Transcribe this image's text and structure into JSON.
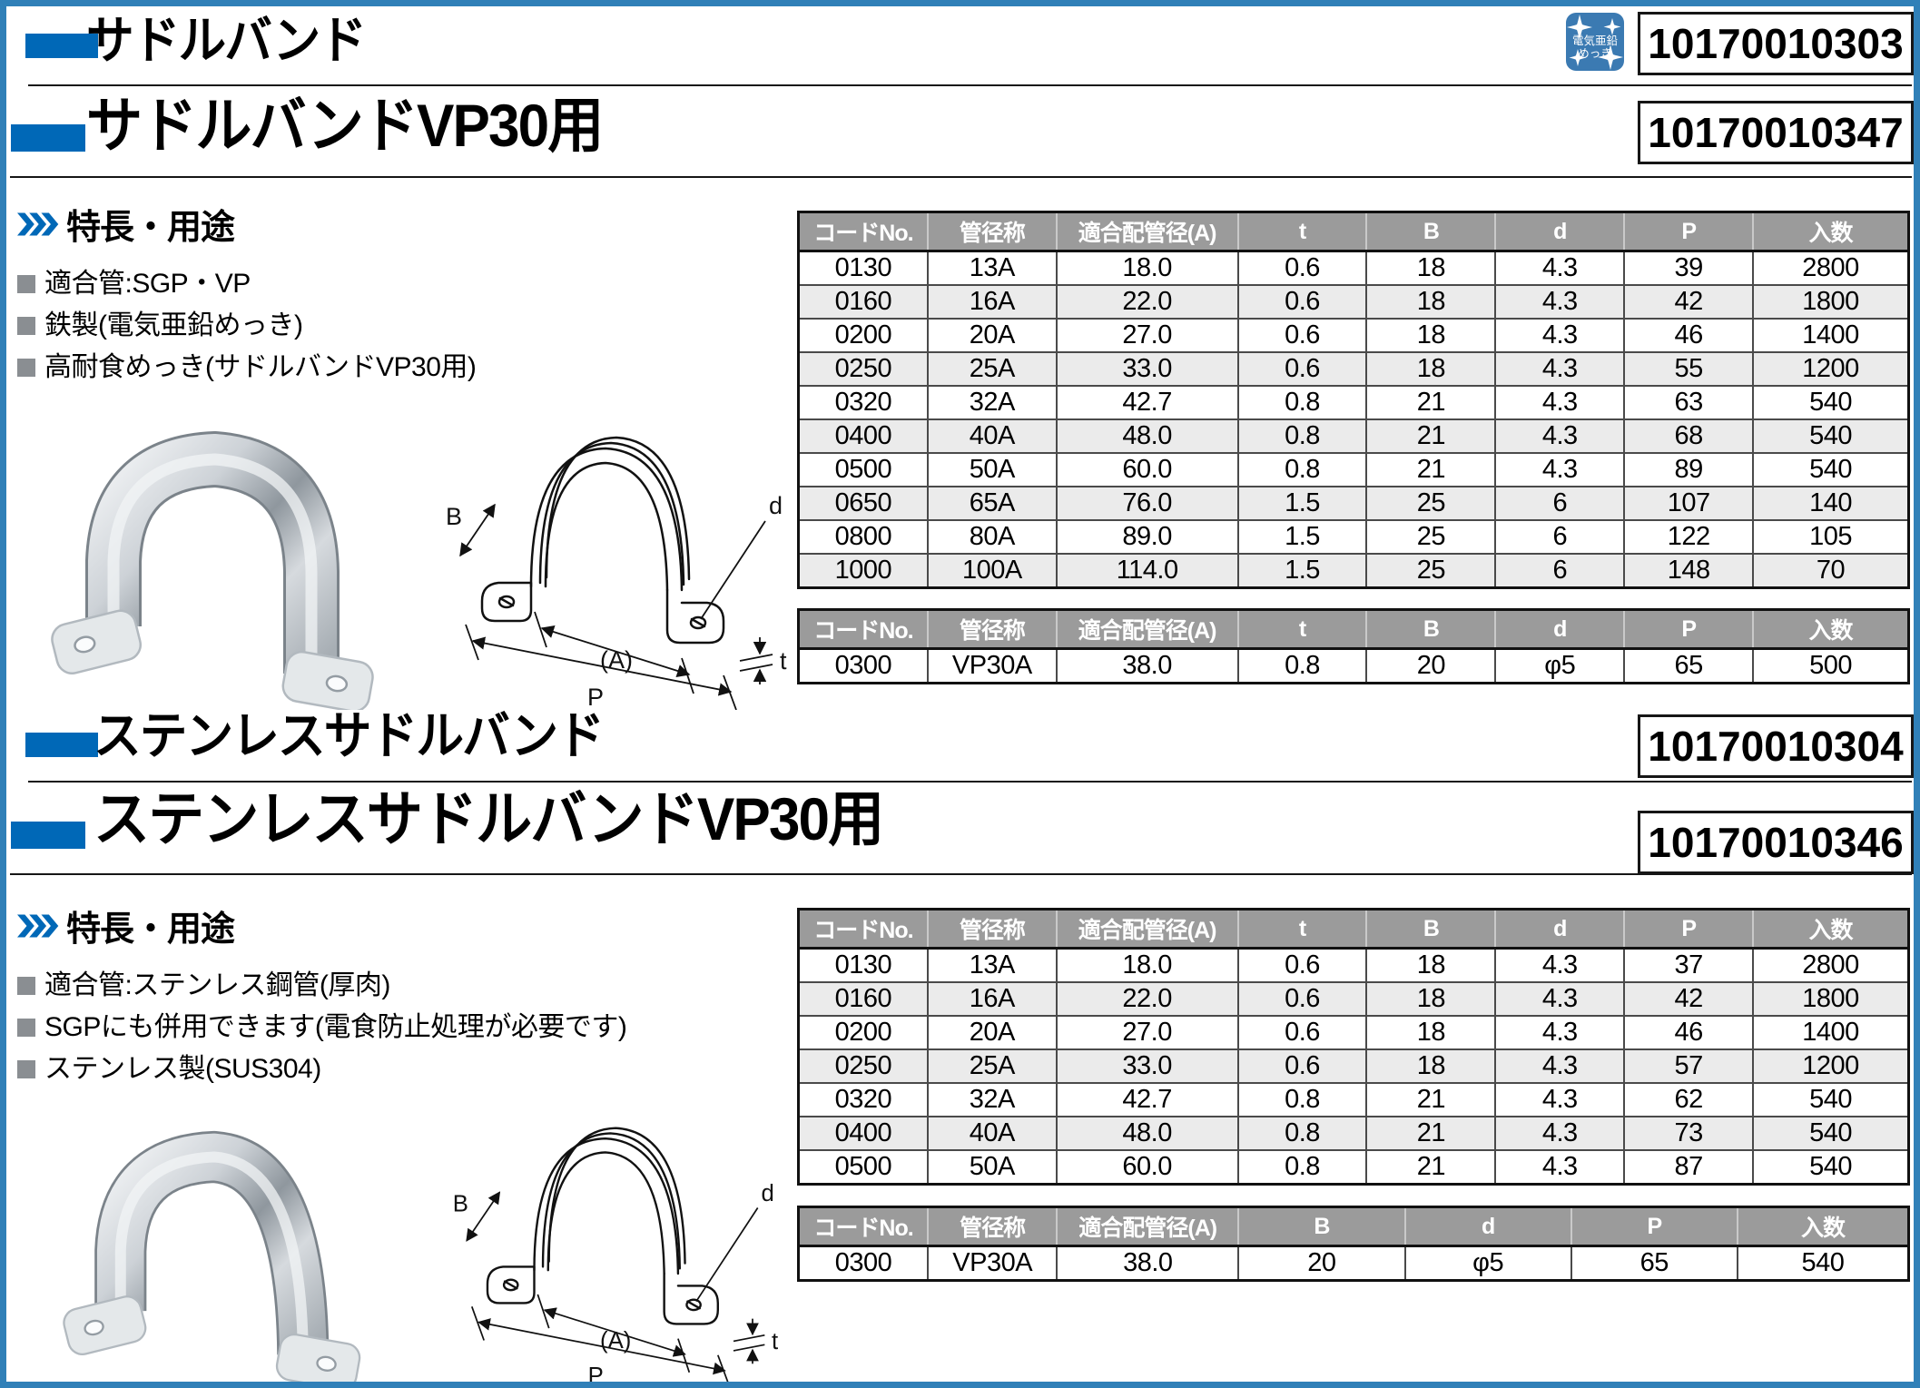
{
  "page": {
    "frame_color": "#3080b8",
    "accent_color": "#0068b7",
    "table_header_bg": "#9b9b9b",
    "alt_row_bg": "#ebebeb",
    "badge_bg": "#3b7ab2"
  },
  "badge": {
    "name": "electro-galvanized-plating",
    "line1": "電気亜鉛",
    "line2": "めっき"
  },
  "features_heading": "特長・用途",
  "diagram": {
    "b": "B",
    "d": "d",
    "a": "(A)",
    "p": "P",
    "t": "t"
  },
  "sections": [
    {
      "title_main": "サドルバンド",
      "code_main": "10170010303",
      "title_vp30": "サドルバンドVP30用",
      "code_vp30": "10170010347",
      "features": [
        "適合管:SGP・VP",
        "鉄製(電気亜鉛めっき)",
        "高耐食めっき(サドルバンドVP30用)"
      ],
      "table_main": {
        "headers": [
          "コードNo.",
          "管径称",
          "適合配管径(A)",
          "t",
          "B",
          "d",
          "P",
          "入数"
        ],
        "rows": [
          [
            "0130",
            "13A",
            "18.0",
            "0.6",
            "18",
            "4.3",
            "39",
            "2800"
          ],
          [
            "0160",
            "16A",
            "22.0",
            "0.6",
            "18",
            "4.3",
            "42",
            "1800"
          ],
          [
            "0200",
            "20A",
            "27.0",
            "0.6",
            "18",
            "4.3",
            "46",
            "1400"
          ],
          [
            "0250",
            "25A",
            "33.0",
            "0.6",
            "18",
            "4.3",
            "55",
            "1200"
          ],
          [
            "0320",
            "32A",
            "42.7",
            "0.8",
            "21",
            "4.3",
            "63",
            "540"
          ],
          [
            "0400",
            "40A",
            "48.0",
            "0.8",
            "21",
            "4.3",
            "68",
            "540"
          ],
          [
            "0500",
            "50A",
            "60.0",
            "0.8",
            "21",
            "4.3",
            "89",
            "540"
          ],
          [
            "0650",
            "65A",
            "76.0",
            "1.5",
            "25",
            "6",
            "107",
            "140"
          ],
          [
            "0800",
            "80A",
            "89.0",
            "1.5",
            "25",
            "6",
            "122",
            "105"
          ],
          [
            "1000",
            "100A",
            "114.0",
            "1.5",
            "25",
            "6",
            "148",
            "70"
          ]
        ]
      },
      "table_vp30": {
        "headers": [
          "コードNo.",
          "管径称",
          "適合配管径(A)",
          "t",
          "B",
          "d",
          "P",
          "入数"
        ],
        "rows": [
          [
            "0300",
            "VP30A",
            "38.0",
            "0.8",
            "20",
            "φ5",
            "65",
            "500"
          ]
        ]
      }
    },
    {
      "title_main": "ステンレスサドルバンド",
      "code_main": "10170010304",
      "title_vp30": "ステンレスサドルバンドVP30用",
      "code_vp30": "10170010346",
      "features": [
        "適合管:ステンレス鋼管(厚肉)",
        "SGPにも併用できます(電食防止処理が必要です)",
        "ステンレス製(SUS304)"
      ],
      "table_main": {
        "headers": [
          "コードNo.",
          "管径称",
          "適合配管径(A)",
          "t",
          "B",
          "d",
          "P",
          "入数"
        ],
        "rows": [
          [
            "0130",
            "13A",
            "18.0",
            "0.6",
            "18",
            "4.3",
            "37",
            "2800"
          ],
          [
            "0160",
            "16A",
            "22.0",
            "0.6",
            "18",
            "4.3",
            "42",
            "1800"
          ],
          [
            "0200",
            "20A",
            "27.0",
            "0.6",
            "18",
            "4.3",
            "46",
            "1400"
          ],
          [
            "0250",
            "25A",
            "33.0",
            "0.6",
            "18",
            "4.3",
            "57",
            "1200"
          ],
          [
            "0320",
            "32A",
            "42.7",
            "0.8",
            "21",
            "4.3",
            "62",
            "540"
          ],
          [
            "0400",
            "40A",
            "48.0",
            "0.8",
            "21",
            "4.3",
            "73",
            "540"
          ],
          [
            "0500",
            "50A",
            "60.0",
            "0.8",
            "21",
            "4.3",
            "87",
            "540"
          ]
        ]
      },
      "table_vp30": {
        "headers": [
          "コードNo.",
          "管径称",
          "適合配管径(A)",
          "B",
          "d",
          "P",
          "入数"
        ],
        "rows": [
          [
            "0300",
            "VP30A",
            "38.0",
            "20",
            "φ5",
            "65",
            "540"
          ]
        ]
      }
    }
  ]
}
